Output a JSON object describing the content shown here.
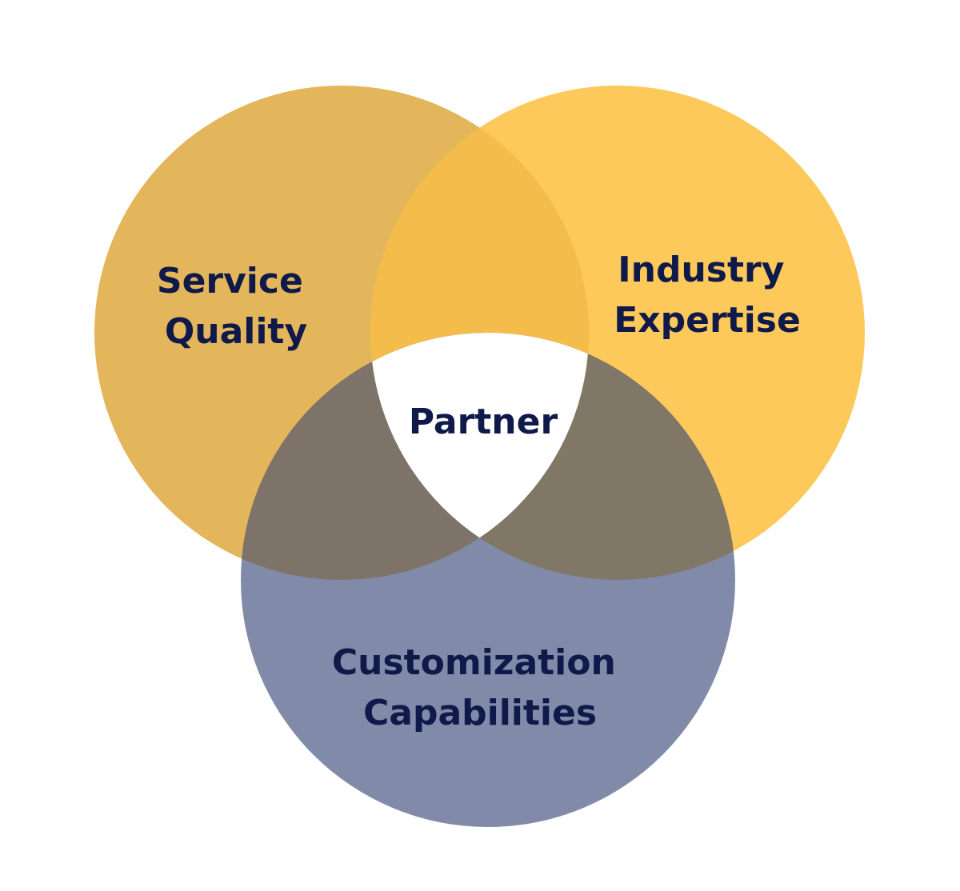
{
  "diagram": {
    "type": "venn-3",
    "sets": [
      {
        "id": "service_quality",
        "lines": [
          "Service",
          "Quality"
        ],
        "color": "#e3b65c"
      },
      {
        "id": "industry_expertise",
        "lines": [
          "Industry",
          "Expertise"
        ],
        "color": "#fcc95a"
      },
      {
        "id": "customization_capabilities",
        "lines": [
          "Customization",
          "Capabilities"
        ],
        "color": "#818aa8"
      }
    ],
    "center": {
      "label": "Partner",
      "color": "#ffffff"
    },
    "overlap_colors": {
      "service_industry": "#f3bc4b",
      "service_customization": "#7e7368",
      "industry_customization": "#817767"
    },
    "text_color": "#101a4a"
  }
}
